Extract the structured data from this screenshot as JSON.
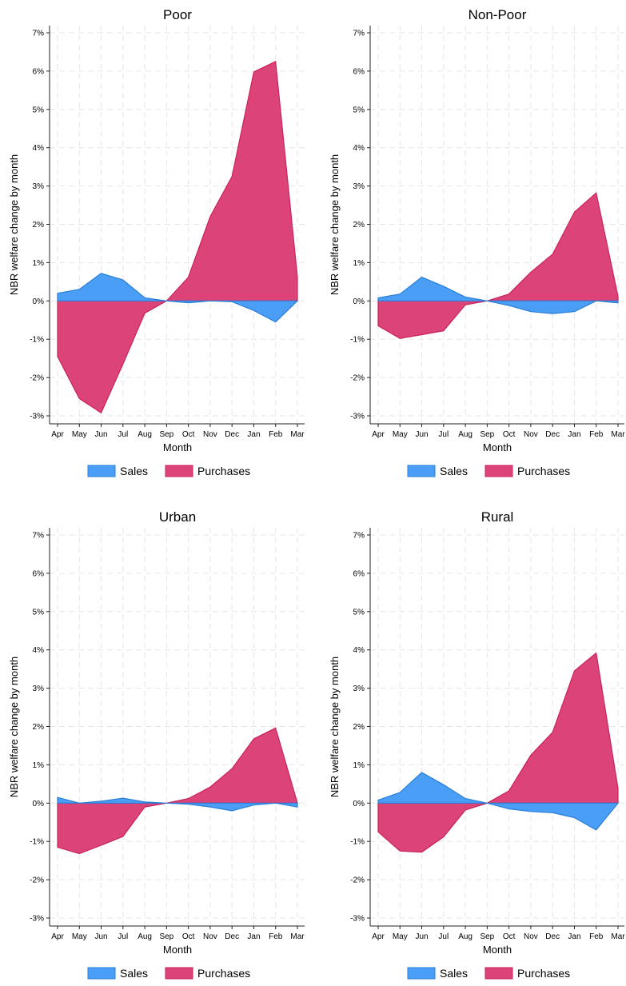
{
  "legend": {
    "sales_label": "Sales",
    "purchases_label": "Purchases"
  },
  "colors": {
    "sales": "#4a9ef5",
    "sales_edge": "#2a7fd8",
    "purchases": "#dc4378",
    "purchases_edge": "#c8235a",
    "grid": "#e6e6e6",
    "axis": "#222222"
  },
  "chart_data": [
    {
      "type": "area",
      "title": "Poor",
      "xlabel": "Month",
      "ylabel": "NBR welfare change by month",
      "categories": [
        "Apr",
        "May",
        "Jun",
        "Jul",
        "Aug",
        "Sep",
        "Oct",
        "Nov",
        "Dec",
        "Jan",
        "Feb",
        "Mar"
      ],
      "ylim": [
        -3,
        7
      ],
      "yticks": [
        "-3%",
        "-2%",
        "-1%",
        "0%",
        "1%",
        "2%",
        "3%",
        "4%",
        "5%",
        "6%",
        "7%"
      ],
      "grid": true,
      "legend_position": "bottom",
      "series": [
        {
          "name": "Sales",
          "values": [
            0.2,
            0.3,
            0.72,
            0.55,
            0.08,
            0.0,
            -0.05,
            0.0,
            -0.02,
            -0.25,
            -0.55,
            0.0
          ]
        },
        {
          "name": "Purchases",
          "values": [
            -1.45,
            -2.55,
            -2.92,
            -1.65,
            -0.32,
            0.0,
            0.62,
            2.2,
            3.25,
            5.98,
            6.25,
            0.62
          ]
        }
      ]
    },
    {
      "type": "area",
      "title": "Non-Poor",
      "xlabel": "Month",
      "ylabel": "NBR welfare change by month",
      "categories": [
        "Apr",
        "May",
        "Jun",
        "Jul",
        "Aug",
        "Sep",
        "Oct",
        "Nov",
        "Dec",
        "Jan",
        "Feb",
        "Mar"
      ],
      "ylim": [
        -3,
        7
      ],
      "yticks": [
        "-3%",
        "-2%",
        "-1%",
        "0%",
        "1%",
        "2%",
        "3%",
        "4%",
        "5%",
        "6%",
        "7%"
      ],
      "grid": true,
      "legend_position": "bottom",
      "series": [
        {
          "name": "Sales",
          "values": [
            0.08,
            0.18,
            0.62,
            0.38,
            0.1,
            0.0,
            -0.12,
            -0.28,
            -0.33,
            -0.28,
            0.0,
            -0.05
          ]
        },
        {
          "name": "Purchases",
          "values": [
            -0.65,
            -0.98,
            -0.88,
            -0.78,
            -0.1,
            0.0,
            0.18,
            0.75,
            1.22,
            2.32,
            2.82,
            0.12
          ]
        }
      ]
    },
    {
      "type": "area",
      "title": "Urban",
      "xlabel": "Month",
      "ylabel": "NBR welfare change by month",
      "categories": [
        "Apr",
        "May",
        "Jun",
        "Jul",
        "Aug",
        "Sep",
        "Oct",
        "Nov",
        "Dec",
        "Jan",
        "Feb",
        "Mar"
      ],
      "ylim": [
        -3,
        7
      ],
      "yticks": [
        "-3%",
        "-2%",
        "-1%",
        "0%",
        "1%",
        "2%",
        "3%",
        "4%",
        "5%",
        "6%",
        "7%"
      ],
      "grid": true,
      "legend_position": "bottom",
      "series": [
        {
          "name": "Sales",
          "values": [
            0.15,
            0.0,
            0.05,
            0.13,
            0.03,
            0.0,
            -0.03,
            -0.1,
            -0.2,
            -0.05,
            0.0,
            -0.1
          ]
        },
        {
          "name": "Purchases",
          "values": [
            -1.15,
            -1.32,
            -1.1,
            -0.87,
            -0.1,
            0.0,
            0.12,
            0.42,
            0.9,
            1.68,
            1.96,
            0.0
          ]
        }
      ]
    },
    {
      "type": "area",
      "title": "Rural",
      "xlabel": "Month",
      "ylabel": "NBR welfare change by month",
      "categories": [
        "Apr",
        "May",
        "Jun",
        "Jul",
        "Aug",
        "Sep",
        "Oct",
        "Nov",
        "Dec",
        "Jan",
        "Feb",
        "Mar"
      ],
      "ylim": [
        -3,
        7
      ],
      "yticks": [
        "-3%",
        "-2%",
        "-1%",
        "0%",
        "1%",
        "2%",
        "3%",
        "4%",
        "5%",
        "6%",
        "7%"
      ],
      "grid": true,
      "legend_position": "bottom",
      "series": [
        {
          "name": "Sales",
          "values": [
            0.08,
            0.28,
            0.8,
            0.48,
            0.12,
            0.0,
            -0.15,
            -0.22,
            -0.25,
            -0.38,
            -0.7,
            0.0
          ]
        },
        {
          "name": "Purchases",
          "values": [
            -0.75,
            -1.25,
            -1.28,
            -0.88,
            -0.18,
            0.0,
            0.32,
            1.25,
            1.85,
            3.45,
            3.92,
            0.38
          ]
        }
      ]
    }
  ]
}
